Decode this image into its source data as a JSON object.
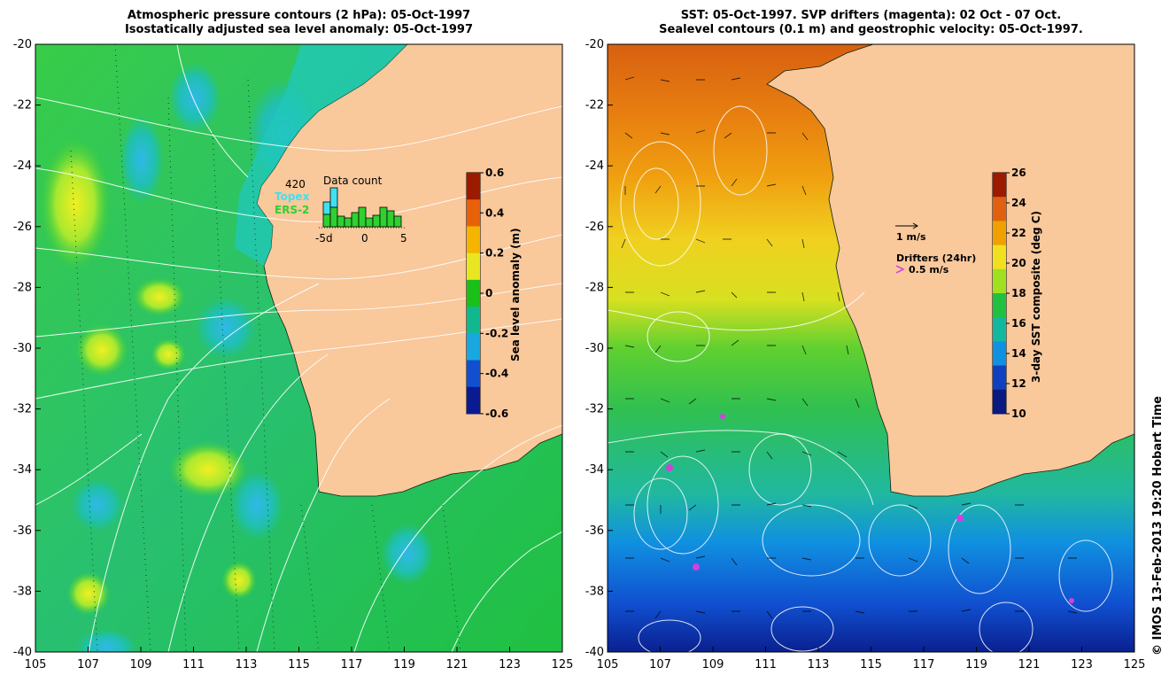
{
  "left_panel": {
    "title_line1": "Atmospheric pressure contours (2 hPa): 05-Oct-1997",
    "title_line2": "Isostatically adjusted sea level anomaly: 05-Oct-1997",
    "colorbar": {
      "label": "Sea level anomaly (m)",
      "ticks": [
        "0.6",
        "0.4",
        "0.2",
        "0",
        "-0.2",
        "-0.4",
        "-0.6"
      ],
      "colors": [
        "#9c1a00",
        "#e8600a",
        "#f5b400",
        "#e8e620",
        "#18c018",
        "#10b890",
        "#18a8e0",
        "#1050d0",
        "#0a1a90"
      ]
    },
    "data_count": {
      "total": "420",
      "title": "Data count",
      "topex_label": "Topex",
      "ers_label": "ERS-2",
      "topex_color": "#40e0f0",
      "ers_color": "#30d030",
      "xticks": [
        "-5d",
        "0",
        "5"
      ]
    }
  },
  "right_panel": {
    "title_line1": "SST: 05-Oct-1997. SVP drifters (magenta): 02 Oct - 07 Oct.",
    "title_line2": "Sealevel contours (0.1 m) and geostrophic velocity: 05-Oct-1997.",
    "colorbar": {
      "label": "3-day SST composite (deg C)",
      "ticks": [
        "26",
        "24",
        "22",
        "20",
        "18",
        "16",
        "14",
        "12",
        "10"
      ],
      "colors": [
        "#9c1a00",
        "#e06010",
        "#f0a000",
        "#f0e020",
        "#a0e020",
        "#20c040",
        "#10b8a0",
        "#1090e0",
        "#1040c0",
        "#0a1a80"
      ]
    },
    "velocity_scale_label": "1 m/s",
    "drifters_title": "Drifters (24hr)",
    "drifters_scale_label": "0.5 m/s",
    "drifter_color": "#d040e0"
  },
  "axes": {
    "y_ticks": [
      "-20",
      "-22",
      "-24",
      "-26",
      "-28",
      "-30",
      "-32",
      "-34",
      "-36",
      "-38",
      "-40"
    ],
    "x_ticks": [
      "105",
      "107",
      "109",
      "111",
      "113",
      "115",
      "117",
      "119",
      "121",
      "123",
      "125"
    ]
  },
  "land_color": "#f9c89b",
  "credit": "© IMOS 13-Feb-2013 19:20 Hobart Time"
}
